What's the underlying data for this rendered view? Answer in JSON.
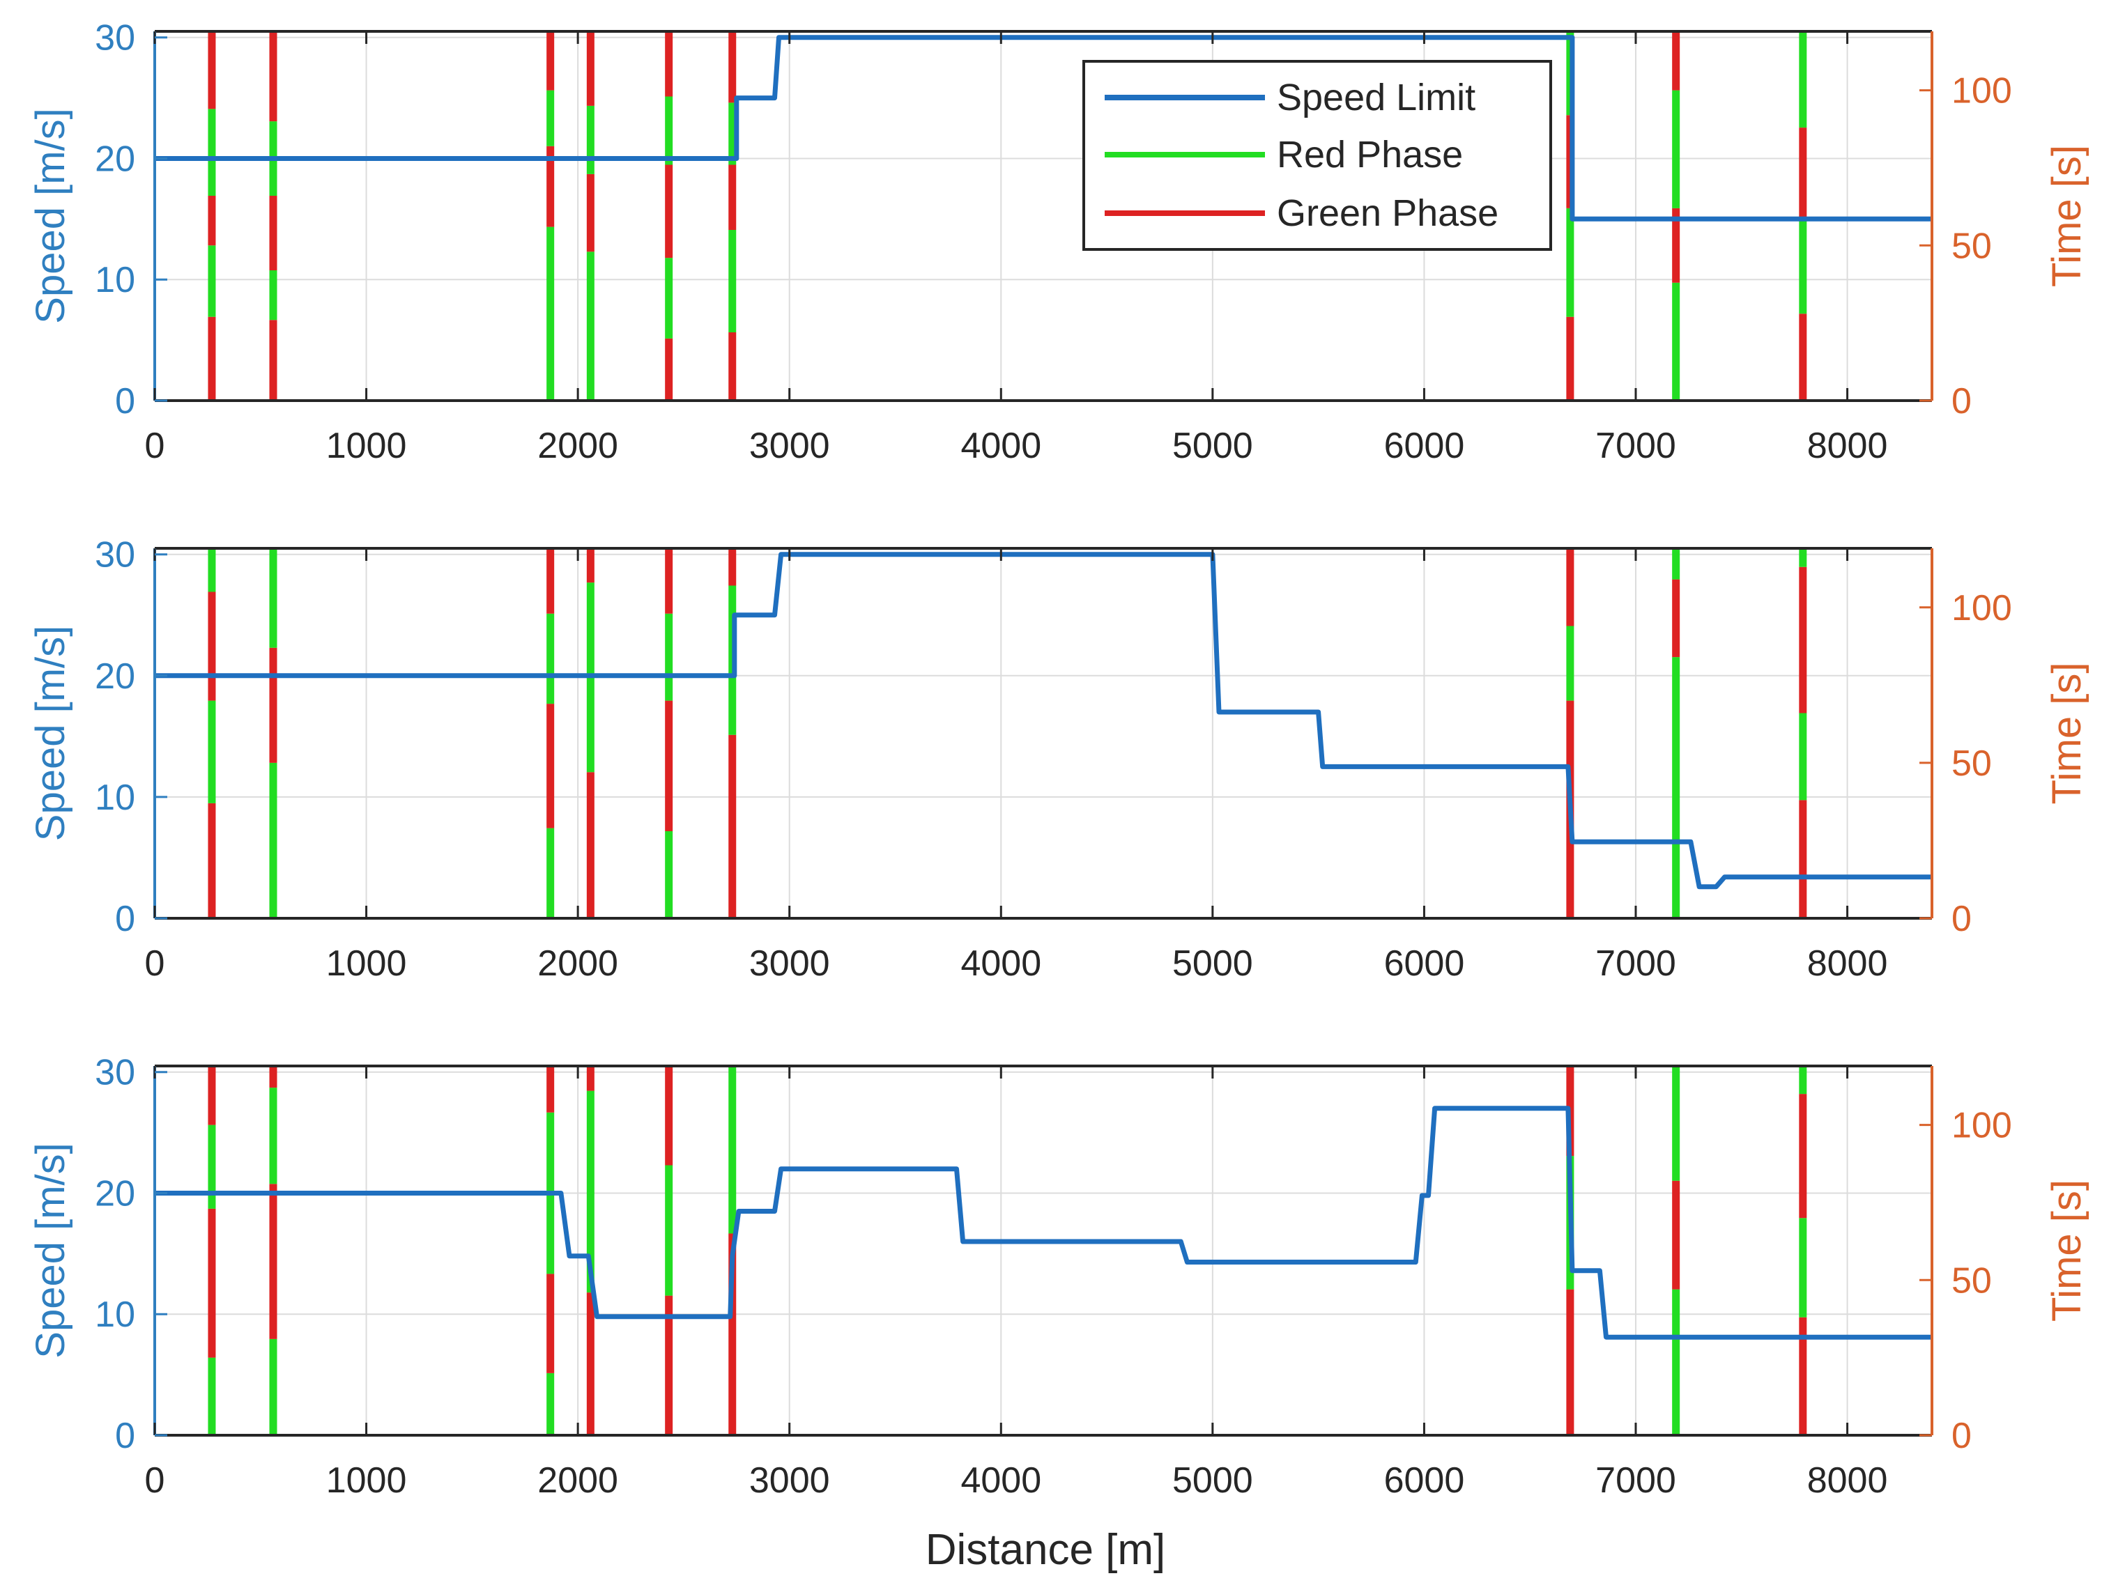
{
  "chart_data": {
    "type": "line",
    "xlabel": "Distance [m]",
    "xlim": [
      0,
      8400
    ],
    "xticks": [
      0,
      1000,
      2000,
      3000,
      4000,
      5000,
      6000,
      7000,
      8000
    ],
    "xtick_labels": [
      "0",
      "1000",
      "2000",
      "3000",
      "4000",
      "5000",
      "6000",
      "7000",
      "8000"
    ],
    "ylabel_left": "Speed [m/s]",
    "ylim_left": [
      0,
      30.5
    ],
    "yticks_left": [
      0,
      10,
      20,
      30
    ],
    "ytick_labels_left": [
      "0",
      "10",
      "20",
      "30"
    ],
    "ylabel_right": "Time [s]",
    "ylim_right": [
      0,
      119
    ],
    "yticks_right": [
      0,
      50,
      100
    ],
    "ytick_labels_right": [
      "0",
      "50",
      "100"
    ],
    "grid": true,
    "legend": {
      "location": "top-right",
      "entries": [
        {
          "label": "Speed Limit",
          "color": "#1f6fbf"
        },
        {
          "label": "Red Phase",
          "color": "#22dd22"
        },
        {
          "label": "Green Phase",
          "color": "#dd2222"
        }
      ]
    },
    "colors": {
      "speed": "#1f6fbf",
      "red_phase": "#22dd22",
      "green_phase": "#dd2222",
      "left_axis": "#2f7fc0",
      "right_axis": "#d9622b",
      "grid": "#dcdcdc"
    },
    "subplots": [
      {
        "name": "subplot-1",
        "speed_limit": {
          "x": [
            0,
            2750,
            2750,
            2930,
            2950,
            6700,
            6700,
            8400
          ],
          "y": [
            20,
            20,
            25,
            25,
            30,
            30,
            15,
            15
          ]
        },
        "signals": [
          {
            "position": 270,
            "segments": [
              [
                0,
                27,
                "red"
              ],
              [
                27,
                50,
                "green"
              ],
              [
                50,
                66,
                "red"
              ],
              [
                66,
                94,
                "green"
              ],
              [
                94,
                119,
                "red"
              ]
            ]
          },
          {
            "position": 560,
            "segments": [
              [
                0,
                26,
                "red"
              ],
              [
                26,
                42,
                "green"
              ],
              [
                42,
                66,
                "red"
              ],
              [
                66,
                90,
                "green"
              ],
              [
                90,
                119,
                "red"
              ]
            ]
          },
          {
            "position": 1870,
            "segments": [
              [
                0,
                56,
                "green"
              ],
              [
                56,
                82,
                "red"
              ],
              [
                82,
                100,
                "green"
              ],
              [
                100,
                119,
                "red"
              ]
            ]
          },
          {
            "position": 2060,
            "segments": [
              [
                0,
                48,
                "green"
              ],
              [
                48,
                73,
                "red"
              ],
              [
                73,
                95,
                "green"
              ],
              [
                95,
                119,
                "red"
              ]
            ]
          },
          {
            "position": 2430,
            "segments": [
              [
                0,
                20,
                "red"
              ],
              [
                20,
                46,
                "green"
              ],
              [
                46,
                76,
                "red"
              ],
              [
                76,
                98,
                "green"
              ],
              [
                98,
                119,
                "red"
              ]
            ]
          },
          {
            "position": 2730,
            "segments": [
              [
                0,
                22,
                "red"
              ],
              [
                22,
                55,
                "green"
              ],
              [
                55,
                76,
                "red"
              ],
              [
                76,
                96,
                "green"
              ],
              [
                96,
                119,
                "red"
              ]
            ]
          },
          {
            "position": 6690,
            "segments": [
              [
                0,
                27,
                "red"
              ],
              [
                27,
                62,
                "green"
              ],
              [
                62,
                92,
                "red"
              ],
              [
                92,
                119,
                "green"
              ]
            ]
          },
          {
            "position": 7190,
            "segments": [
              [
                0,
                38,
                "green"
              ],
              [
                38,
                62,
                "red"
              ],
              [
                62,
                100,
                "green"
              ],
              [
                100,
                119,
                "red"
              ]
            ]
          },
          {
            "position": 7790,
            "segments": [
              [
                0,
                28,
                "red"
              ],
              [
                28,
                58,
                "green"
              ],
              [
                58,
                88,
                "red"
              ],
              [
                88,
                119,
                "green"
              ]
            ]
          }
        ]
      },
      {
        "name": "subplot-2",
        "speed_limit": {
          "x": [
            0,
            2740,
            2740,
            2930,
            2960,
            5000,
            5030,
            5500,
            5520,
            6680,
            6700,
            7260,
            7300,
            7380,
            7420,
            8400
          ],
          "y": [
            20,
            20,
            25,
            25,
            30,
            30,
            17,
            17,
            12.5,
            12.5,
            6.3,
            6.3,
            2.6,
            2.6,
            3.4,
            3.4
          ]
        },
        "signals": [
          {
            "position": 270,
            "segments": [
              [
                0,
                37,
                "red"
              ],
              [
                37,
                70,
                "green"
              ],
              [
                70,
                105,
                "red"
              ],
              [
                105,
                119,
                "green"
              ]
            ]
          },
          {
            "position": 560,
            "segments": [
              [
                0,
                50,
                "green"
              ],
              [
                50,
                87,
                "red"
              ],
              [
                87,
                119,
                "green"
              ]
            ]
          },
          {
            "position": 1870,
            "segments": [
              [
                0,
                29,
                "green"
              ],
              [
                29,
                69,
                "red"
              ],
              [
                69,
                98,
                "green"
              ],
              [
                98,
                119,
                "red"
              ]
            ]
          },
          {
            "position": 2060,
            "segments": [
              [
                0,
                47,
                "red"
              ],
              [
                47,
                108,
                "green"
              ],
              [
                108,
                119,
                "red"
              ]
            ]
          },
          {
            "position": 2430,
            "segments": [
              [
                0,
                28,
                "green"
              ],
              [
                28,
                70,
                "red"
              ],
              [
                70,
                98,
                "green"
              ],
              [
                98,
                119,
                "red"
              ]
            ]
          },
          {
            "position": 2730,
            "segments": [
              [
                0,
                59,
                "red"
              ],
              [
                59,
                107,
                "green"
              ],
              [
                107,
                119,
                "red"
              ]
            ]
          },
          {
            "position": 6690,
            "segments": [
              [
                0,
                70,
                "red"
              ],
              [
                70,
                94,
                "green"
              ],
              [
                94,
                119,
                "red"
              ]
            ]
          },
          {
            "position": 7190,
            "segments": [
              [
                0,
                84,
                "green"
              ],
              [
                84,
                109,
                "red"
              ],
              [
                109,
                119,
                "green"
              ]
            ]
          },
          {
            "position": 7790,
            "segments": [
              [
                0,
                38,
                "red"
              ],
              [
                38,
                66,
                "green"
              ],
              [
                66,
                113,
                "red"
              ],
              [
                113,
                119,
                "green"
              ]
            ]
          }
        ]
      },
      {
        "name": "subplot-3",
        "speed_limit": {
          "x": [
            0,
            1920,
            1960,
            2050,
            2090,
            2720,
            2730,
            2760,
            2780,
            2930,
            2960,
            3790,
            3820,
            4850,
            4880,
            5960,
            5990,
            6020,
            6050,
            6680,
            6700,
            6830,
            6860,
            8400
          ],
          "y": [
            20,
            20,
            14.8,
            14.8,
            9.8,
            9.8,
            14.8,
            18.5,
            18.5,
            18.5,
            22,
            22,
            16,
            16,
            14.3,
            14.3,
            19.8,
            19.8,
            27,
            27,
            13.6,
            13.6,
            8.1,
            8.1
          ]
        },
        "signals": [
          {
            "position": 270,
            "segments": [
              [
                0,
                25,
                "green"
              ],
              [
                25,
                73,
                "red"
              ],
              [
                73,
                100,
                "green"
              ],
              [
                100,
                119,
                "red"
              ]
            ]
          },
          {
            "position": 560,
            "segments": [
              [
                0,
                31,
                "green"
              ],
              [
                31,
                81,
                "red"
              ],
              [
                81,
                112,
                "green"
              ],
              [
                112,
                119,
                "red"
              ]
            ]
          },
          {
            "position": 1870,
            "segments": [
              [
                0,
                20,
                "green"
              ],
              [
                20,
                52,
                "red"
              ],
              [
                52,
                104,
                "green"
              ],
              [
                104,
                119,
                "red"
              ]
            ]
          },
          {
            "position": 2060,
            "segments": [
              [
                0,
                46,
                "red"
              ],
              [
                46,
                111,
                "green"
              ],
              [
                111,
                119,
                "red"
              ]
            ]
          },
          {
            "position": 2430,
            "segments": [
              [
                0,
                45,
                "red"
              ],
              [
                45,
                87,
                "green"
              ],
              [
                87,
                119,
                "red"
              ]
            ]
          },
          {
            "position": 2730,
            "segments": [
              [
                0,
                65,
                "red"
              ],
              [
                65,
                119,
                "green"
              ]
            ]
          },
          {
            "position": 6690,
            "segments": [
              [
                0,
                47,
                "red"
              ],
              [
                47,
                90,
                "green"
              ],
              [
                90,
                119,
                "red"
              ]
            ]
          },
          {
            "position": 7190,
            "segments": [
              [
                0,
                47,
                "green"
              ],
              [
                47,
                82,
                "red"
              ],
              [
                82,
                119,
                "green"
              ]
            ]
          },
          {
            "position": 7790,
            "segments": [
              [
                0,
                38,
                "red"
              ],
              [
                38,
                70,
                "green"
              ],
              [
                70,
                110,
                "red"
              ],
              [
                110,
                119,
                "green"
              ]
            ]
          }
        ]
      }
    ]
  }
}
